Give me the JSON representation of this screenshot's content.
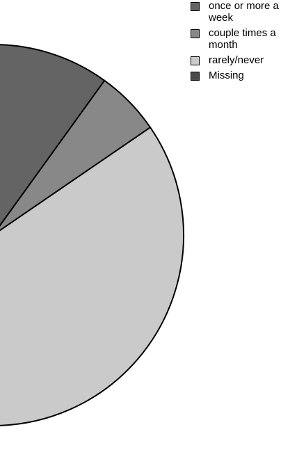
{
  "chart_data": {
    "type": "pie",
    "title": "",
    "slices": [
      {
        "label": "once or more a week",
        "value": 10.5,
        "color": "#646464"
      },
      {
        "label": "couple times a month",
        "value": 5.5,
        "color": "#888888"
      },
      {
        "label": "rarely/never",
        "value": 84.0,
        "color": "#cacaca"
      },
      {
        "label": "Missing",
        "value": 0,
        "color": "#4a4a4a"
      }
    ],
    "legend_position": "top-right"
  }
}
